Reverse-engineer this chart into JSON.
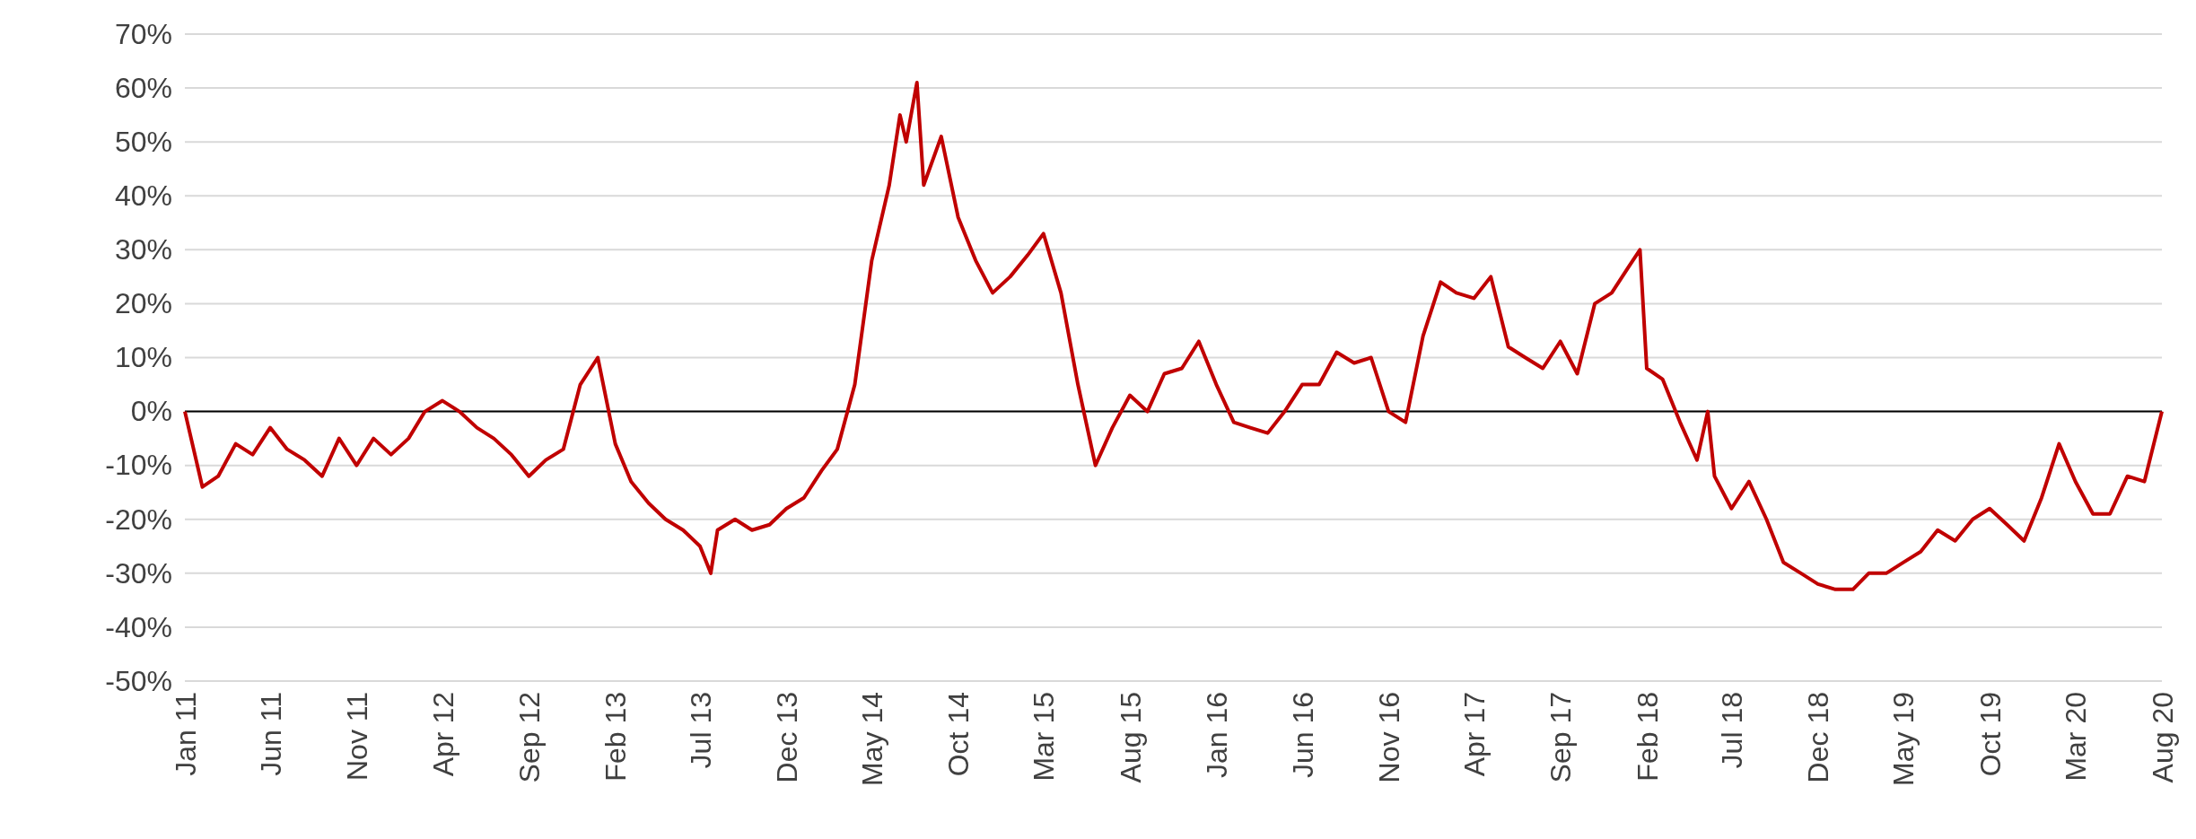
{
  "chart_data": {
    "type": "line",
    "x": [
      "2011-01",
      "2011-02",
      "2011-03",
      "2011-04",
      "2011-05",
      "2011-06",
      "2011-07",
      "2011-08",
      "2011-09",
      "2011-10",
      "2011-11",
      "2011-12",
      "2012-01",
      "2012-02",
      "2012-03",
      "2012-04",
      "2012-05",
      "2012-06",
      "2012-07",
      "2012-08",
      "2012-09",
      "2012-10",
      "2012-11",
      "2012-12",
      "2013-01",
      "2013-02",
      "2013-03",
      "2013-04",
      "2013-05",
      "2013-06",
      "2013-07",
      "2013-07-20",
      "2013-08",
      "2013-09",
      "2013-10",
      "2013-11",
      "2013-12",
      "2014-01",
      "2014-02",
      "2014-03",
      "2014-04",
      "2014-05",
      "2014-06",
      "2014-06-20",
      "2014-07",
      "2014-07-20",
      "2014-08",
      "2014-09",
      "2014-10",
      "2014-11",
      "2014-12",
      "2015-01",
      "2015-02",
      "2015-03",
      "2015-04",
      "2015-05",
      "2015-06",
      "2015-07",
      "2015-08",
      "2015-09",
      "2015-10",
      "2015-11",
      "2015-12",
      "2016-01",
      "2016-02",
      "2016-03",
      "2016-04",
      "2016-05",
      "2016-06",
      "2016-07",
      "2016-08",
      "2016-09",
      "2016-10",
      "2016-11",
      "2016-12",
      "2017-01",
      "2017-02",
      "2017-03",
      "2017-04",
      "2017-05",
      "2017-06",
      "2017-07",
      "2017-08",
      "2017-09",
      "2017-10",
      "2017-11",
      "2017-12",
      "2018-01",
      "2018-01-20",
      "2018-02",
      "2018-03",
      "2018-04",
      "2018-05",
      "2018-05-20",
      "2018-06",
      "2018-07",
      "2018-08",
      "2018-09",
      "2018-10",
      "2018-11",
      "2018-12",
      "2019-01",
      "2019-02",
      "2019-03",
      "2019-04",
      "2019-05",
      "2019-06",
      "2019-07",
      "2019-08",
      "2019-09",
      "2019-10",
      "2019-11",
      "2019-12",
      "2020-01",
      "2020-02",
      "2020-03",
      "2020-04",
      "2020-05",
      "2020-06",
      "2020-07",
      "2020-08"
    ],
    "series": [
      {
        "color": "#c00000",
        "values": [
          0,
          -14,
          -12,
          -6,
          -8,
          -3,
          -7,
          -9,
          -12,
          -5,
          -10,
          -5,
          -8,
          -5,
          0,
          2,
          0,
          -3,
          -5,
          -8,
          -12,
          -9,
          -7,
          5,
          10,
          -6,
          -13,
          -17,
          -20,
          -22,
          -25,
          -30,
          -22,
          -20,
          -22,
          -21,
          -18,
          -16,
          -11,
          -7,
          5,
          28,
          42,
          55,
          50,
          61,
          42,
          51,
          36,
          28,
          22,
          25,
          29,
          33,
          22,
          5,
          -10,
          -3,
          3,
          0,
          7,
          8,
          13,
          5,
          -2,
          -3,
          -4,
          0,
          5,
          5,
          11,
          9,
          10,
          0,
          -2,
          14,
          24,
          22,
          21,
          25,
          12,
          10,
          8,
          13,
          7,
          20,
          22,
          27,
          30,
          8,
          6,
          -2,
          -9,
          0,
          -12,
          -18,
          -13,
          -20,
          -28,
          -30,
          -32,
          -33,
          -33,
          -30,
          -30,
          -28,
          -26,
          -22,
          -24,
          -20,
          -18,
          -21,
          -24,
          -16,
          -6,
          -13,
          -19,
          -19,
          -12,
          -13,
          0
        ]
      }
    ],
    "xlim": [
      "2011-01",
      "2020-08"
    ],
    "xticks": [
      {
        "value": "2011-01",
        "label": "Jan 11"
      },
      {
        "value": "2011-06",
        "label": "Jun 11"
      },
      {
        "value": "2011-11",
        "label": "Nov 11"
      },
      {
        "value": "2012-04",
        "label": "Apr 12"
      },
      {
        "value": "2012-09",
        "label": "Sep 12"
      },
      {
        "value": "2013-02",
        "label": "Feb 13"
      },
      {
        "value": "2013-07",
        "label": "Jul 13"
      },
      {
        "value": "2013-12",
        "label": "Dec 13"
      },
      {
        "value": "2014-05",
        "label": "May 14"
      },
      {
        "value": "2014-10",
        "label": "Oct 14"
      },
      {
        "value": "2015-03",
        "label": "Mar 15"
      },
      {
        "value": "2015-08",
        "label": "Aug 15"
      },
      {
        "value": "2016-01",
        "label": "Jan 16"
      },
      {
        "value": "2016-06",
        "label": "Jun 16"
      },
      {
        "value": "2016-11",
        "label": "Nov 16"
      },
      {
        "value": "2017-04",
        "label": "Apr 17"
      },
      {
        "value": "2017-09",
        "label": "Sep 17"
      },
      {
        "value": "2018-02",
        "label": "Feb 18"
      },
      {
        "value": "2018-07",
        "label": "Jul 18"
      },
      {
        "value": "2018-12",
        "label": "Dec 18"
      },
      {
        "value": "2019-05",
        "label": "May 19"
      },
      {
        "value": "2019-10",
        "label": "Oct 19"
      },
      {
        "value": "2020-03",
        "label": "Mar 20"
      },
      {
        "value": "2020-08",
        "label": "Aug 20"
      }
    ],
    "ylim": [
      -50,
      70
    ],
    "yticks": [
      {
        "value": -50,
        "label": "-50%"
      },
      {
        "value": -40,
        "label": "-40%"
      },
      {
        "value": -30,
        "label": "-30%"
      },
      {
        "value": -20,
        "label": "-20%"
      },
      {
        "value": -10,
        "label": "-10%"
      },
      {
        "value": 0,
        "label": "0%"
      },
      {
        "value": 10,
        "label": "10%"
      },
      {
        "value": 20,
        "label": "20%"
      },
      {
        "value": 30,
        "label": "30%"
      },
      {
        "value": 40,
        "label": "40%"
      },
      {
        "value": 50,
        "label": "50%"
      },
      {
        "value": 60,
        "label": "60%"
      },
      {
        "value": 70,
        "label": "70%"
      }
    ],
    "grid": "y",
    "ref_lines": [
      {
        "axis": "y",
        "value": 0,
        "color": "#000000"
      }
    ]
  }
}
